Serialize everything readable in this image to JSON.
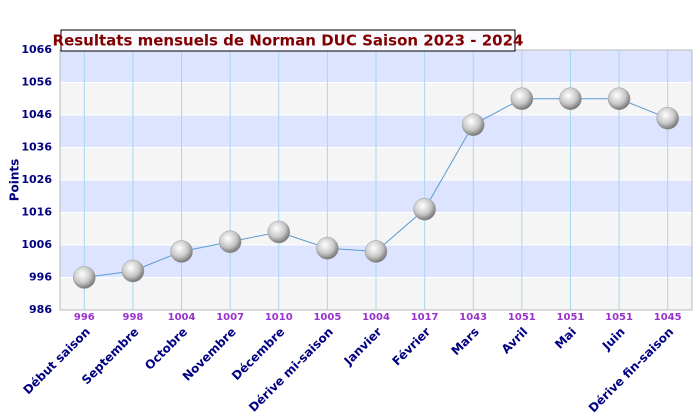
{
  "chart_data": {
    "type": "line",
    "title": "Resultats mensuels de Norman DUC Saison 2023 - 2024",
    "y_label": "Points",
    "categories": [
      "Début saison",
      "Septembre",
      "Octobre",
      "Novembre",
      "Décembre",
      "Dérive mi-saison",
      "Janvier",
      "Février",
      "Mars",
      "Avril",
      "Mai",
      "Juin",
      "Dérive fin-saison"
    ],
    "values": [
      996,
      998,
      1004,
      1007,
      1010,
      1005,
      1004,
      1017,
      1043,
      1051,
      1051,
      1051,
      1045
    ],
    "color": "#5b9bd5",
    "ylim": [
      986,
      1066
    ],
    "yticks": [
      986,
      996,
      1006,
      1016,
      1026,
      1036,
      1046,
      1056,
      1066
    ],
    "grid": true
  }
}
